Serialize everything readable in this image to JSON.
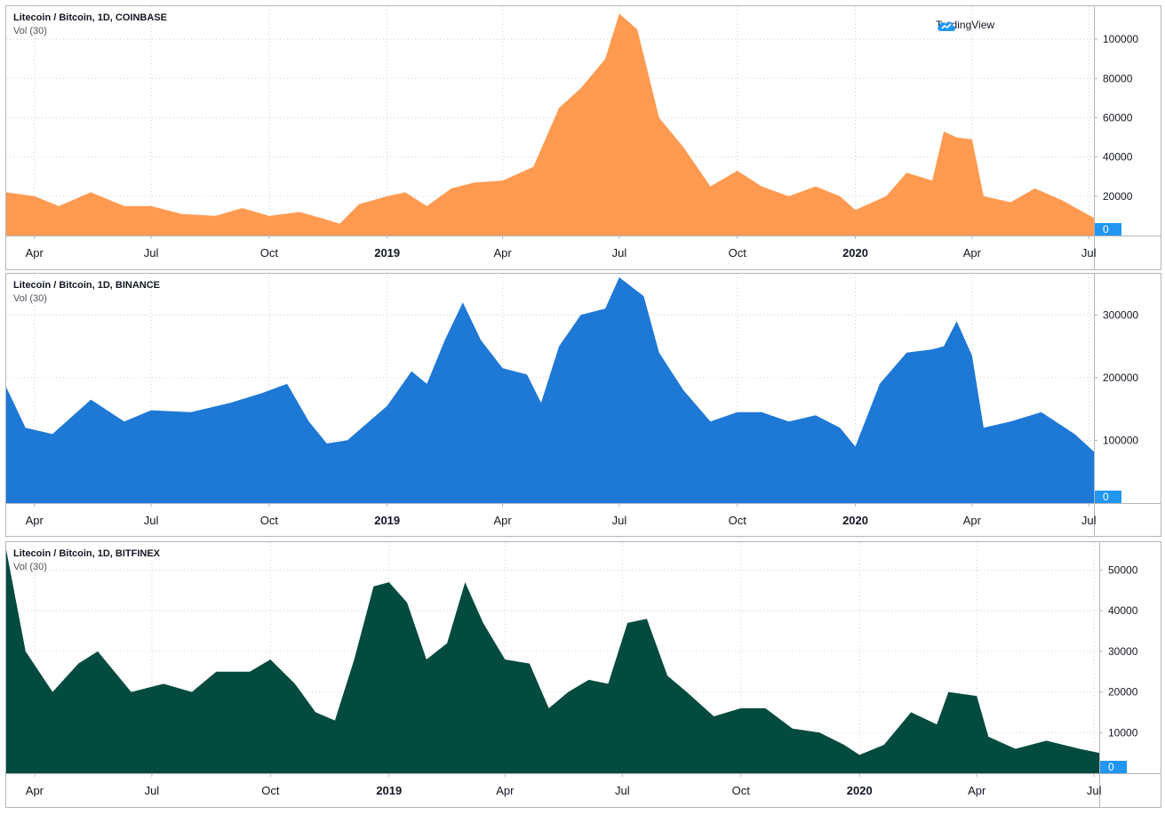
{
  "watermark": {
    "text": "TradingView",
    "icon": "tradingview-cloud-icon"
  },
  "x_tick_labels": [
    {
      "label": "Apr",
      "bold": false
    },
    {
      "label": "Jul",
      "bold": false
    },
    {
      "label": "Oct",
      "bold": false
    },
    {
      "label": "2019",
      "bold": true
    },
    {
      "label": "Apr",
      "bold": false
    },
    {
      "label": "Jul",
      "bold": false
    },
    {
      "label": "Oct",
      "bold": false
    },
    {
      "label": "2020",
      "bold": true
    },
    {
      "label": "Apr",
      "bold": false
    },
    {
      "label": "Jul",
      "bold": false
    }
  ],
  "chart_data": [
    {
      "type": "area",
      "title": "Litecoin / Bitcoin, 1D, COINBASE",
      "subtitle": "Vol (30)",
      "color": "#ff9a50",
      "x": [
        "2018-03-10",
        "2018-04-01",
        "2018-04-20",
        "2018-05-15",
        "2018-06-10",
        "2018-07-01",
        "2018-07-25",
        "2018-08-20",
        "2018-09-10",
        "2018-10-01",
        "2018-10-25",
        "2018-11-15",
        "2018-11-25",
        "2018-12-10",
        "2019-01-01",
        "2019-01-15",
        "2019-02-01",
        "2019-02-20",
        "2019-03-10",
        "2019-04-01",
        "2019-04-25",
        "2019-05-15",
        "2019-06-01",
        "2019-06-20",
        "2019-07-01",
        "2019-07-15",
        "2019-08-01",
        "2019-08-20",
        "2019-09-10",
        "2019-10-01",
        "2019-10-20",
        "2019-11-10",
        "2019-12-01",
        "2019-12-20",
        "2020-01-01",
        "2020-01-25",
        "2020-02-10",
        "2020-03-01",
        "2020-03-10",
        "2020-03-20",
        "2020-04-01",
        "2020-04-10",
        "2020-05-01",
        "2020-05-20",
        "2020-06-10",
        "2020-07-05"
      ],
      "values": [
        22000,
        20000,
        15000,
        22000,
        15000,
        15000,
        11000,
        10000,
        14000,
        10000,
        12000,
        8000,
        6000,
        16000,
        20000,
        22000,
        15000,
        24000,
        27000,
        28000,
        35000,
        65000,
        75000,
        90000,
        113000,
        105000,
        60000,
        45000,
        25000,
        33000,
        25000,
        20000,
        25000,
        20000,
        13000,
        20000,
        32000,
        28000,
        53000,
        50000,
        49000,
        20000,
        17000,
        24000,
        18000,
        9000
      ],
      "yticks": [
        0,
        20000,
        40000,
        60000,
        80000,
        100000
      ],
      "ylim": [
        0,
        115000
      ],
      "last_value_label": "0",
      "grid": true
    },
    {
      "type": "area",
      "title": "Litecoin / Bitcoin, 1D, BINANCE",
      "subtitle": "Vol (30)",
      "color": "#1e78d6",
      "x": [
        "2018-03-10",
        "2018-03-25",
        "2018-04-15",
        "2018-05-15",
        "2018-06-10",
        "2018-07-01",
        "2018-08-01",
        "2018-09-01",
        "2018-09-25",
        "2018-10-15",
        "2018-11-01",
        "2018-11-15",
        "2018-12-01",
        "2019-01-01",
        "2019-01-20",
        "2019-02-01",
        "2019-02-15",
        "2019-03-01",
        "2019-03-15",
        "2019-04-01",
        "2019-04-20",
        "2019-05-01",
        "2019-05-15",
        "2019-06-01",
        "2019-06-20",
        "2019-07-01",
        "2019-07-20",
        "2019-08-01",
        "2019-08-20",
        "2019-09-10",
        "2019-10-01",
        "2019-10-20",
        "2019-11-10",
        "2019-12-01",
        "2019-12-20",
        "2020-01-01",
        "2020-01-20",
        "2020-02-10",
        "2020-03-01",
        "2020-03-10",
        "2020-03-20",
        "2020-04-01",
        "2020-04-10",
        "2020-05-01",
        "2020-05-25",
        "2020-06-20",
        "2020-07-05"
      ],
      "values": [
        185000,
        120000,
        110000,
        165000,
        130000,
        148000,
        145000,
        160000,
        175000,
        190000,
        130000,
        95000,
        100000,
        155000,
        210000,
        190000,
        260000,
        320000,
        260000,
        215000,
        205000,
        160000,
        250000,
        300000,
        310000,
        360000,
        330000,
        240000,
        180000,
        130000,
        145000,
        145000,
        130000,
        140000,
        120000,
        90000,
        190000,
        240000,
        245000,
        250000,
        290000,
        235000,
        120000,
        130000,
        145000,
        110000,
        82000
      ],
      "yticks": [
        0,
        100000,
        200000,
        300000
      ],
      "ylim": [
        0,
        360000
      ],
      "last_value_label": "0",
      "grid": true
    },
    {
      "type": "area",
      "title": "Litecoin / Bitcoin, 1D, BITFINEX",
      "subtitle": "Vol (30)",
      "color": "#024b3e",
      "x": [
        "2018-03-10",
        "2018-03-25",
        "2018-04-15",
        "2018-05-05",
        "2018-05-20",
        "2018-06-15",
        "2018-07-10",
        "2018-08-01",
        "2018-08-20",
        "2018-09-15",
        "2018-10-01",
        "2018-10-20",
        "2018-11-05",
        "2018-11-20",
        "2018-12-05",
        "2018-12-20",
        "2019-01-01",
        "2019-01-15",
        "2019-01-30",
        "2019-02-15",
        "2019-03-01",
        "2019-03-15",
        "2019-04-01",
        "2019-04-20",
        "2019-05-05",
        "2019-05-20",
        "2019-06-05",
        "2019-06-20",
        "2019-07-05",
        "2019-07-20",
        "2019-08-05",
        "2019-08-20",
        "2019-09-10",
        "2019-10-01",
        "2019-10-20",
        "2019-11-10",
        "2019-12-01",
        "2019-12-20",
        "2020-01-01",
        "2020-01-20",
        "2020-02-10",
        "2020-03-01",
        "2020-03-10",
        "2020-04-01",
        "2020-04-10",
        "2020-05-01",
        "2020-05-25",
        "2020-06-20",
        "2020-07-05"
      ],
      "values": [
        55000,
        30000,
        20000,
        27000,
        30000,
        20000,
        22000,
        20000,
        25000,
        25000,
        28000,
        22000,
        15000,
        13000,
        28000,
        46000,
        47000,
        42000,
        28000,
        32000,
        47000,
        37000,
        28000,
        27000,
        16000,
        20000,
        23000,
        22000,
        37000,
        38000,
        24000,
        20000,
        14000,
        16000,
        16000,
        11000,
        10000,
        7000,
        4500,
        7000,
        15000,
        12000,
        20000,
        19000,
        9000,
        6000,
        8000,
        6000,
        5000
      ],
      "yticks": [
        0,
        10000,
        20000,
        30000,
        40000,
        50000
      ],
      "ylim": [
        0,
        56000
      ],
      "last_value_label": "0",
      "grid": true
    }
  ]
}
